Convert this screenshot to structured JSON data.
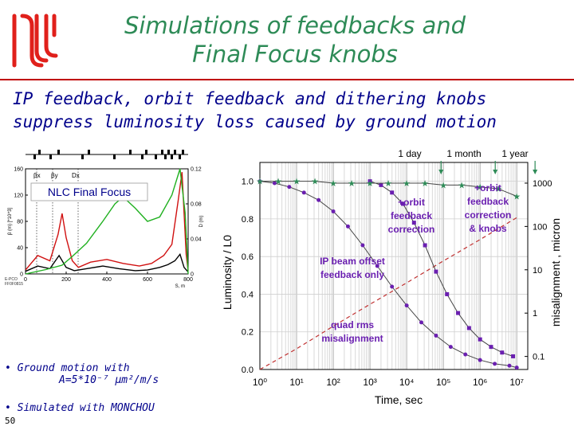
{
  "slide": {
    "title_line1": "Simulations of feedbacks and",
    "title_line2": "Final Focus knobs",
    "subtitle_line1": "IP feedback, orbit feedback and dithering knobs",
    "subtitle_line2": "suppress luminosity loss caused by ground motion",
    "bullet1_line1": "• Ground motion with",
    "bullet1_line2": "A=5*10⁻⁷ µm²/m/s",
    "bullet2": "• Simulated with MONCHOU",
    "slide_number": "50",
    "logo_color": "#e0201b"
  },
  "chart_data": [
    {
      "type": "line",
      "title": "NLC Final Focus",
      "xlabel": "S, m",
      "ylabel_left": "β (m) [*10^3]",
      "ylabel_right": "D (m)",
      "x_ticks": [
        "0",
        "200",
        "400",
        "600",
        "800"
      ],
      "y_ticks_left": [
        "0",
        "40",
        "80",
        "120",
        "160"
      ],
      "y_ticks_right": [
        "0",
        "0.04",
        "0.08",
        "0.12"
      ],
      "legend": [
        "βx",
        "βy",
        "Dx"
      ],
      "xlim": [
        0,
        800
      ],
      "ylim_left": [
        0,
        160
      ],
      "ylim_right": [
        0,
        0.12
      ],
      "corner_note": "E-PCO\nFF0F0815",
      "series_colors": {
        "beta_x": "#000000",
        "beta_y": "#d01010",
        "dispersion": "#20b020"
      },
      "series": [
        {
          "name": "βx",
          "x": [
            0,
            60,
            120,
            165,
            200,
            240,
            300,
            380,
            460,
            540,
            600,
            660,
            700,
            735,
            760,
            780,
            800
          ],
          "y": [
            4,
            12,
            8,
            28,
            10,
            5,
            8,
            12,
            8,
            5,
            6,
            10,
            14,
            20,
            30,
            10,
            3
          ]
        },
        {
          "name": "βy",
          "x": [
            0,
            60,
            120,
            160,
            180,
            200,
            230,
            260,
            320,
            400,
            480,
            560,
            620,
            680,
            720,
            750,
            770,
            790,
            800
          ],
          "y": [
            6,
            28,
            20,
            60,
            92,
            55,
            20,
            10,
            18,
            22,
            16,
            12,
            16,
            28,
            45,
            110,
            155,
            30,
            5
          ]
        },
        {
          "name": "Dx",
          "x": [
            0,
            100,
            180,
            230,
            300,
            380,
            440,
            480,
            540,
            600,
            660,
            720,
            760,
            785,
            800
          ],
          "y": [
            0,
            0.005,
            0.01,
            0.02,
            0.035,
            0.06,
            0.08,
            0.088,
            0.075,
            0.06,
            0.065,
            0.09,
            0.12,
            0.07,
            0.0
          ]
        }
      ]
    },
    {
      "type": "line",
      "xlabel": "Time, sec",
      "ylabel_left": "Luminosity / L0",
      "ylabel_right": "misalignment , micron",
      "x_log": true,
      "xlim": [
        1000,
        10000000
      ],
      "x_ticks": [
        "10³",
        "10⁴",
        "10⁵",
        "10⁶",
        "10⁷"
      ],
      "x_ticks_extra": [
        "10⁰",
        "10¹",
        "10²"
      ],
      "ylim_left": [
        0,
        1.1
      ],
      "y_ticks_left": [
        "0.0",
        "0.2",
        "0.4",
        "0.6",
        "0.8",
        "1.0"
      ],
      "y_log_right": true,
      "y_ticks_right": [
        "0.1",
        "1",
        "10",
        "100",
        "1000"
      ],
      "time_markers": [
        {
          "label": "1 day",
          "t": 86400
        },
        {
          "label": "1 month",
          "t": 2592000
        },
        {
          "label": "1 year",
          "t": 31536000
        }
      ],
      "annotations": [
        "+orbit\nfeedback\ncorrection",
        "+orbit\nfeedback\ncorrection\n& knobs",
        "IP beam offset\nfeedback only",
        "quad rms\nmisalignment"
      ],
      "colors": {
        "ip_feedback": "#6a1fb0",
        "orbit_feedback": "#2e8b57",
        "knobs": "#6a1fb0",
        "misalignment": "#c03030",
        "annotation_text": "#6a1fb0"
      },
      "series": [
        {
          "name": "IP beam offset feedback only",
          "logx": [
            0.0,
            0.4,
            0.8,
            1.2,
            1.6,
            2.0,
            2.4,
            2.8,
            3.2,
            3.6,
            4.0,
            4.4,
            4.8,
            5.2,
            5.6,
            6.0,
            6.4,
            6.8,
            7.0
          ],
          "y": [
            1.0,
            0.99,
            0.97,
            0.94,
            0.9,
            0.84,
            0.76,
            0.66,
            0.55,
            0.44,
            0.34,
            0.25,
            0.18,
            0.12,
            0.08,
            0.05,
            0.03,
            0.02,
            0.01
          ]
        },
        {
          "name": "+orbit feedback correction",
          "logx": [
            3.0,
            3.3,
            3.6,
            3.9,
            4.2,
            4.5,
            4.8,
            5.1,
            5.4,
            5.7,
            6.0,
            6.3,
            6.6,
            6.9
          ],
          "y": [
            1.0,
            0.98,
            0.94,
            0.88,
            0.78,
            0.66,
            0.52,
            0.4,
            0.3,
            0.22,
            0.16,
            0.12,
            0.09,
            0.07
          ]
        },
        {
          "name": "+orbit feedback correction & knobs",
          "logx": [
            0.0,
            0.5,
            1.0,
            1.5,
            2.0,
            2.5,
            3.0,
            3.5,
            4.0,
            4.5,
            5.0,
            5.5,
            6.0,
            6.5,
            7.0
          ],
          "y": [
            1.0,
            1.0,
            1.0,
            1.0,
            0.99,
            0.99,
            0.99,
            0.99,
            0.99,
            0.99,
            0.98,
            0.98,
            0.97,
            0.96,
            0.92
          ]
        },
        {
          "name": "quad rms misalignment",
          "logx": [
            0.0,
            1.0,
            2.0,
            3.0,
            4.0,
            5.0,
            6.0,
            7.0
          ],
          "y_micron": [
            0.05,
            0.15,
            0.5,
            1.6,
            5,
            16,
            50,
            160
          ]
        }
      ]
    }
  ]
}
